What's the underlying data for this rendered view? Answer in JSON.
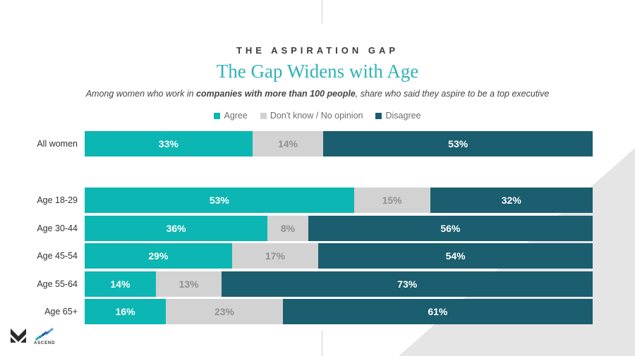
{
  "header": {
    "kicker": "THE ASPIRATION GAP",
    "title": "The Gap Widens with Age",
    "subtitle_prefix": "Among women who work in ",
    "subtitle_bold": "companies with more than 100 people",
    "subtitle_suffix": ", share who said they aspire to be a top executive"
  },
  "legend": [
    {
      "label": "Agree",
      "color": "#0cb6b2"
    },
    {
      "label": "Don't know / No opinion",
      "color": "#d2d2d2"
    },
    {
      "label": "Disagree",
      "color": "#1a5e6f"
    }
  ],
  "chart_data": {
    "type": "bar",
    "orientation": "horizontal",
    "stacked": true,
    "xlim": [
      0,
      100
    ],
    "value_suffix": "%",
    "categories": [
      "All women",
      "Age 18-29",
      "Age 30-44",
      "Age 45-54",
      "Age 55-64",
      "Age 65+"
    ],
    "series": [
      {
        "name": "Agree",
        "color": "#0cb6b2",
        "label_color": "#ffffff",
        "values": [
          33,
          53,
          36,
          29,
          14,
          16
        ]
      },
      {
        "name": "Don't know / No opinion",
        "color": "#d2d2d2",
        "label_color": "#909090",
        "values": [
          14,
          15,
          8,
          17,
          13,
          23
        ]
      },
      {
        "name": "Disagree",
        "color": "#1a5e6f",
        "label_color": "#ffffff",
        "values": [
          53,
          32,
          56,
          54,
          73,
          61
        ]
      }
    ],
    "notes": "Gap separates the All women summary row from the age-group rows"
  },
  "footer": {
    "brand_label": "ASCEND",
    "ascend_dash_colors": [
      "#2fae9e",
      "#2391c0",
      "#1a53a8",
      "#2e77cc",
      "#5ea0e0"
    ],
    "m_logo_color": "#2b2b2b"
  },
  "decor": {
    "triangle_color": "#e5e5e5",
    "line_color": "#ededed"
  }
}
